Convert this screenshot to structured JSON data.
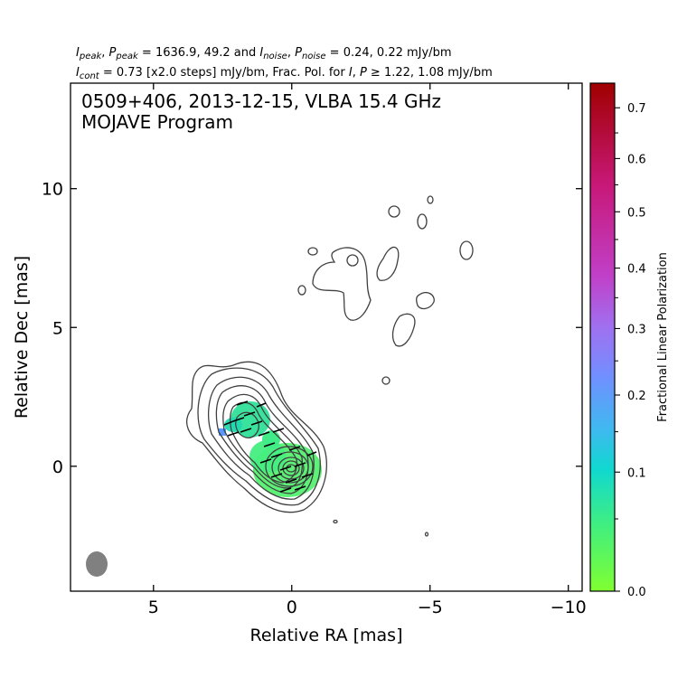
{
  "header": {
    "line1": [
      {
        "t": "I",
        "i": true
      },
      {
        "t": "peak",
        "sub": true
      },
      {
        "t": ", "
      },
      {
        "t": "P",
        "i": true
      },
      {
        "t": "peak",
        "sub": true
      },
      {
        "t": " = 1636.9, 49.2 and "
      },
      {
        "t": "I",
        "i": true
      },
      {
        "t": "noise",
        "sub": true
      },
      {
        "t": ", "
      },
      {
        "t": "P",
        "i": true
      },
      {
        "t": "noise",
        "sub": true
      },
      {
        "t": " = 0.24, 0.22 mJy/bm"
      }
    ],
    "line2": [
      {
        "t": "I",
        "i": true
      },
      {
        "t": "cont",
        "sub": true
      },
      {
        "t": " = 0.73 [x2.0 steps] mJy/bm, Frac. Pol. for "
      },
      {
        "t": "I",
        "i": true
      },
      {
        "t": ", "
      },
      {
        "t": "P",
        "i": true
      },
      {
        "t": " ≥ 1.22, 1.08 mJy/bm"
      }
    ]
  },
  "chart_data": {
    "type": "contour",
    "title_line1": "0509+406, 2013-12-15, VLBA 15.4 GHz",
    "title_line2": "MOJAVE Program",
    "xlabel": "Relative RA [mas]",
    "ylabel": "Relative Dec [mas]",
    "xlim": [
      8,
      -10.5
    ],
    "ylim": [
      -4.5,
      13.8
    ],
    "xticks": [
      5,
      0,
      -5,
      -10
    ],
    "xtick_labels": [
      "5",
      "0",
      "−5",
      "−10"
    ],
    "yticks": [
      0,
      5,
      10
    ],
    "ytick_labels": [
      "0",
      "5",
      "10"
    ],
    "core": {
      "x": 0,
      "y": 0
    },
    "jet_knot": {
      "x": 1.5,
      "y": 1.8
    },
    "beam": {
      "x": 7.0,
      "y": -3.5,
      "major_mas": 0.85,
      "minor_mas": 0.72
    },
    "contour_levels_mJy": [
      0.73,
      1.46,
      2.92,
      5.84,
      11.68,
      23.36,
      46.72,
      93.44,
      186.88,
      373.76,
      747.52,
      1495.04
    ],
    "isolated_contours": [
      {
        "x": -1.5,
        "y": -1.9
      },
      {
        "x": -4.9,
        "y": -2.4
      },
      {
        "x": -3.4,
        "y": 3.2
      },
      {
        "x": -3.7,
        "y": 9.2
      },
      {
        "x": -4.6,
        "y": 8.8
      },
      {
        "x": -5.1,
        "y": 9.7
      },
      {
        "x": -6.3,
        "y": 7.9
      },
      {
        "x": -0.8,
        "y": 7.8
      },
      {
        "x": -0.4,
        "y": 6.5
      },
      {
        "x": -4.8,
        "y": 6.2
      },
      {
        "x": -2.2,
        "y": 7.5
      },
      {
        "x": -3.5,
        "y": 7.4
      },
      {
        "x": -4.1,
        "y": 4.9
      }
    ],
    "colorbar": {
      "label": "Fractional Linear Polarization",
      "range": [
        0.0,
        0.75
      ],
      "ticks": [
        0.0,
        0.1,
        0.2,
        0.3,
        0.4,
        0.5,
        0.6,
        0.7
      ],
      "tick_labels": [
        "0.0",
        "0.1",
        "0.2",
        "0.3",
        "0.4",
        "0.5",
        "0.6",
        "0.7"
      ],
      "colors": [
        "#80ff30",
        "#40ef80",
        "#10d8d0",
        "#40b8f0",
        "#7090ff",
        "#a070f0",
        "#c040c8",
        "#c81878",
        "#a00000"
      ]
    }
  }
}
